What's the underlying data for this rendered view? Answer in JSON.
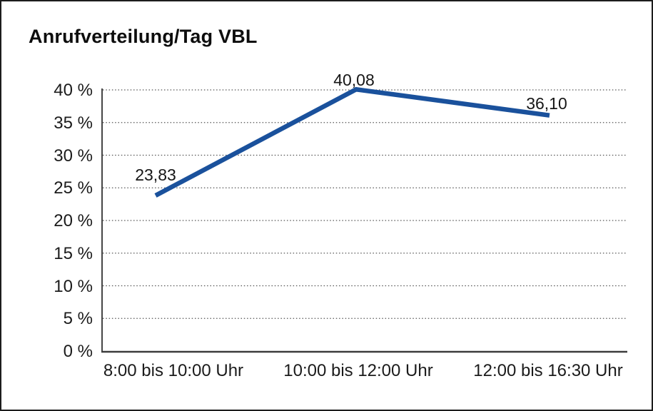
{
  "page": {
    "background_color": "#ffffff",
    "border_color": "#1c1c1c"
  },
  "chart_data": {
    "type": "line",
    "title": "Anrufverteilung/Tag VBL",
    "categories": [
      "8:00 bis 10:00 Uhr",
      "10:00 bis 12:00 Uhr",
      "12:00 bis 16:30 Uhr"
    ],
    "values": [
      23.83,
      40.08,
      36.1
    ],
    "point_labels": [
      "23,83",
      "40,08",
      "36,10"
    ],
    "xlabel": "",
    "ylabel": "",
    "ylim": [
      0,
      40
    ],
    "ytick_values": [
      0,
      5,
      10,
      15,
      20,
      25,
      30,
      35,
      40
    ],
    "ytick_labels": [
      "0 %",
      "5 %",
      "10 %",
      "15 %",
      "20 %",
      "25 %",
      "30 %",
      "35 %",
      "40 %"
    ],
    "grid": "horizontal-dotted",
    "legend": "none",
    "line_color": "#1a519c",
    "grid_color": "#555555",
    "axis_color": "#3c3c3c",
    "text_color": "#1b1b1b"
  }
}
